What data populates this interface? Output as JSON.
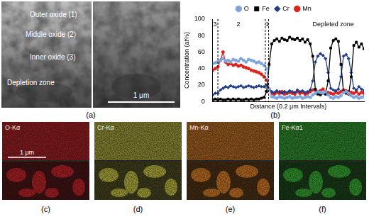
{
  "chart_data": {
    "type": "line",
    "caption": "(b)",
    "xlabel": "Distance (0.2 μm Intervals)",
    "ylabel": "Concentration (at%)",
    "x": [
      0,
      1,
      2,
      3,
      4,
      5,
      6,
      7,
      8,
      9,
      10,
      11,
      12,
      13,
      14,
      15,
      16,
      17,
      18,
      19,
      20,
      21,
      22,
      23,
      24,
      25,
      26,
      27,
      28,
      29,
      30,
      31,
      32,
      33,
      34,
      35,
      36,
      37,
      38,
      39,
      40,
      41,
      42,
      43,
      44,
      45,
      46,
      47,
      48,
      49,
      50,
      51,
      52,
      53,
      54,
      55,
      56,
      57,
      58,
      59
    ],
    "xlim": [
      0,
      59
    ],
    "ylim": [
      0,
      100
    ],
    "yticks": [
      0,
      20,
      40,
      60,
      80,
      100
    ],
    "grid": false,
    "legend": "top",
    "tick_labels": "y",
    "series": [
      {
        "name": "O",
        "color": "#7ea6dc",
        "marker": "circle",
        "line_style": "solid",
        "values": [
          46,
          47,
          48,
          50,
          52,
          49,
          50,
          48,
          51,
          50,
          49,
          52,
          50,
          48,
          51,
          50,
          49,
          47,
          48,
          46,
          44,
          40,
          15,
          6,
          5,
          4,
          6,
          5,
          4,
          5,
          6,
          4,
          5,
          5,
          6,
          4,
          5,
          6,
          5,
          8,
          10,
          12,
          11,
          10,
          12,
          8,
          5,
          4,
          6,
          5,
          7,
          11,
          12,
          10,
          7,
          5,
          6,
          4,
          5,
          6
        ]
      },
      {
        "name": "Fe",
        "color": "#000000",
        "marker": "square",
        "line_style": "solid",
        "values": [
          2,
          3,
          2,
          3,
          2,
          2,
          3,
          2,
          3,
          2,
          3,
          2,
          2,
          3,
          2,
          3,
          2,
          3,
          3,
          4,
          5,
          12,
          45,
          70,
          74,
          76,
          73,
          77,
          75,
          74,
          78,
          76,
          75,
          77,
          74,
          76,
          72,
          75,
          70,
          55,
          15,
          9,
          8,
          10,
          9,
          25,
          65,
          74,
          76,
          73,
          45,
          12,
          10,
          9,
          30,
          68,
          72,
          66,
          70,
          64
        ]
      },
      {
        "name": "Cr",
        "color": "#1f3d8c",
        "marker": "diamond",
        "line_style": "solid",
        "values": [
          8,
          10,
          10,
          14,
          16,
          18,
          17,
          19,
          18,
          17,
          18,
          19,
          17,
          18,
          19,
          18,
          17,
          18,
          19,
          18,
          18,
          20,
          15,
          12,
          11,
          13,
          12,
          10,
          12,
          11,
          13,
          12,
          11,
          14,
          12,
          13,
          11,
          12,
          14,
          25,
          48,
          55,
          58,
          56,
          52,
          35,
          16,
          14,
          13,
          15,
          30,
          55,
          57,
          52,
          35,
          16,
          14,
          18,
          15,
          13
        ]
      },
      {
        "name": "Mn",
        "color": "#e0201b",
        "marker": "circle",
        "line_style": "solid",
        "values": [
          38,
          40,
          42,
          50,
          60,
          48,
          45,
          46,
          44,
          45,
          43,
          44,
          42,
          41,
          40,
          38,
          37,
          36,
          35,
          33,
          30,
          26,
          15,
          10,
          9,
          11,
          10,
          12,
          9,
          10,
          11,
          10,
          9,
          12,
          10,
          11,
          9,
          10,
          12,
          14,
          14,
          12,
          13,
          15,
          12,
          11,
          10,
          9,
          11,
          10,
          12,
          14,
          13,
          12,
          11,
          10,
          12,
          9,
          11,
          10
        ]
      }
    ],
    "boundaries": [
      2,
      20.5,
      21.8
    ],
    "annotations": [
      {
        "text": "3",
        "x": 0.9
      },
      {
        "text": "2",
        "x": 10
      },
      {
        "text": "1",
        "x": 21.15
      },
      {
        "text": "Depleted zone",
        "x": 47
      }
    ]
  },
  "image_panel": {
    "caption": "(a)",
    "labels": [
      "Outer oxide (1)",
      "Middle oxide (2)",
      "Inner oxide (3)",
      "Depletion zone"
    ],
    "scale_bar": "1 μm"
  },
  "maps": [
    {
      "caption": "(c)",
      "title": "O-Kα",
      "color": "#d8262c",
      "scale_bar": "1 μm"
    },
    {
      "caption": "(d)",
      "title": "Cr-Kα",
      "color": "#d6d24a"
    },
    {
      "caption": "(e)",
      "title": "Mn-Kα",
      "color": "#ef8a2a"
    },
    {
      "caption": "(f)",
      "title": "Fe-Kα1",
      "color": "#3fbf3a"
    }
  ]
}
